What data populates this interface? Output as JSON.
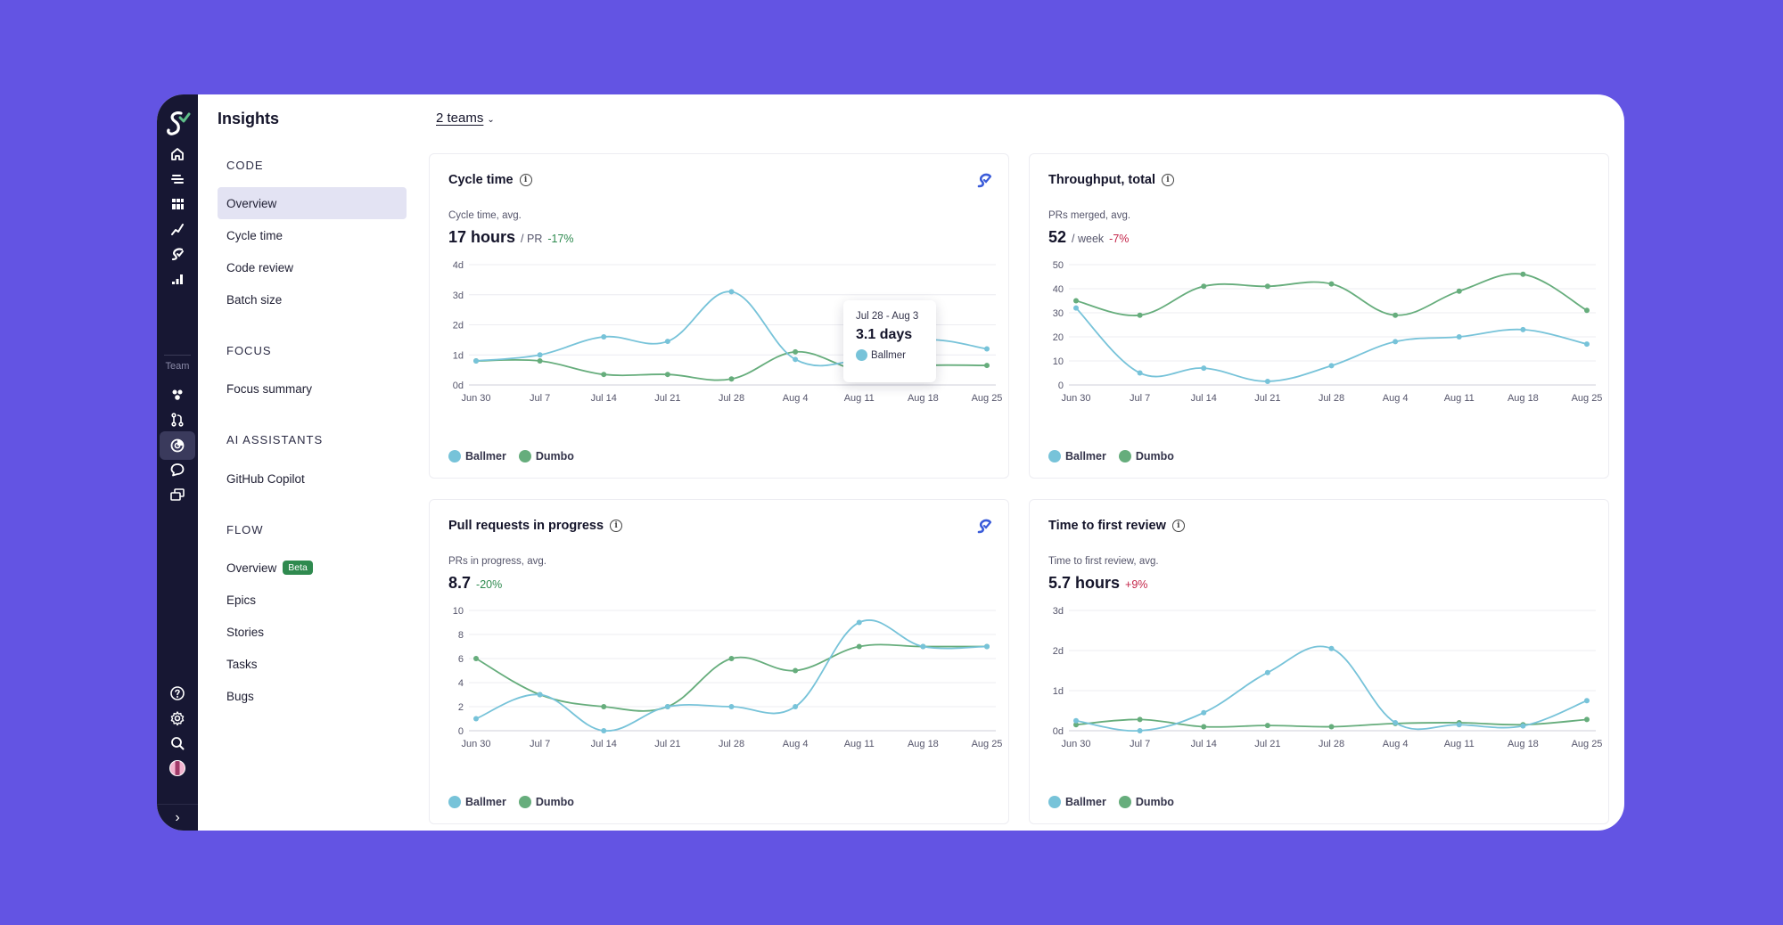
{
  "app": {
    "title": "Insights"
  },
  "teams_selector": "2 teams",
  "rail": {
    "team_label": "Team",
    "icons": [
      "home-icon",
      "list-icon",
      "grid-icon",
      "trend-icon",
      "swarmia-icon",
      "bars-icon",
      "people-icon",
      "pull-request-icon",
      "insights-icon",
      "chat-icon",
      "stack-icon"
    ],
    "footer_icons": [
      "help-icon",
      "settings-icon",
      "search-icon",
      "avatar",
      "expand-icon"
    ]
  },
  "nav": {
    "sections": [
      {
        "label": "CODE",
        "items": [
          {
            "label": "Overview",
            "active": true
          },
          {
            "label": "Cycle time"
          },
          {
            "label": "Code review"
          },
          {
            "label": "Batch size"
          }
        ]
      },
      {
        "label": "FOCUS",
        "items": [
          {
            "label": "Focus summary"
          }
        ]
      },
      {
        "label": "AI ASSISTANTS",
        "items": [
          {
            "label": "GitHub Copilot"
          }
        ]
      },
      {
        "label": "FLOW",
        "items": [
          {
            "label": "Overview",
            "badge": "Beta"
          },
          {
            "label": "Epics"
          },
          {
            "label": "Stories"
          },
          {
            "label": "Tasks"
          },
          {
            "label": "Bugs"
          }
        ]
      }
    ]
  },
  "colors": {
    "ballmer": "#77c3d9",
    "dumbo": "#66ad7c",
    "accent": "#6354e3"
  },
  "legend": [
    "Ballmer",
    "Dumbo"
  ],
  "cards": {
    "cycle_time": {
      "title": "Cycle time",
      "sublabel": "Cycle time, avg.",
      "value": "17 hours",
      "unit": "/ PR",
      "change": "-17%",
      "tooltip": {
        "date": "Jul 28 - Aug 3",
        "value": "3.1 days",
        "series": "Ballmer"
      }
    },
    "throughput": {
      "title": "Throughput, total",
      "sublabel": "PRs merged, avg.",
      "value": "52",
      "unit": "/ week",
      "change": "-7%"
    },
    "prs_in_progress": {
      "title": "Pull requests in progress",
      "sublabel": "PRs in progress, avg.",
      "value": "8.7",
      "change": "-20%"
    },
    "time_to_first_review": {
      "title": "Time to first review",
      "sublabel": "Time to first review, avg.",
      "value": "5.7 hours",
      "change": "+9%"
    }
  },
  "chart_data": [
    {
      "type": "line",
      "title": "Cycle time",
      "categories": [
        "Jun 30",
        "Jul 7",
        "Jul 14",
        "Jul 21",
        "Jul 28",
        "Aug 4",
        "Aug 11",
        "Aug 18",
        "Aug 25"
      ],
      "yticks": [
        "0d",
        "1d",
        "2d",
        "3d",
        "4d"
      ],
      "ylim": [
        0,
        4
      ],
      "series": [
        {
          "name": "Ballmer",
          "values": [
            0.8,
            1.0,
            1.6,
            1.45,
            3.1,
            0.85,
            0.85,
            1.5,
            1.2
          ]
        },
        {
          "name": "Dumbo",
          "values": [
            0.8,
            0.8,
            0.35,
            0.35,
            0.2,
            1.1,
            0.5,
            0.65,
            0.65
          ]
        }
      ]
    },
    {
      "type": "line",
      "title": "Throughput, total",
      "categories": [
        "Jun 30",
        "Jul 7",
        "Jul 14",
        "Jul 21",
        "Jul 28",
        "Aug 4",
        "Aug 11",
        "Aug 18",
        "Aug 25"
      ],
      "yticks": [
        "0",
        "10",
        "20",
        "30",
        "40",
        "50"
      ],
      "ylim": [
        0,
        50
      ],
      "series": [
        {
          "name": "Ballmer",
          "values": [
            32,
            5,
            7,
            1.5,
            8,
            18,
            20,
            23,
            17
          ]
        },
        {
          "name": "Dumbo",
          "values": [
            35,
            29,
            41,
            41,
            42,
            29,
            39,
            46,
            31
          ]
        }
      ]
    },
    {
      "type": "line",
      "title": "Pull requests in progress",
      "categories": [
        "Jun 30",
        "Jul 7",
        "Jul 14",
        "Jul 21",
        "Jul 28",
        "Aug 4",
        "Aug 11",
        "Aug 18",
        "Aug 25"
      ],
      "yticks": [
        "0",
        "2",
        "4",
        "6",
        "8",
        "10"
      ],
      "ylim": [
        0,
        10
      ],
      "series": [
        {
          "name": "Ballmer",
          "values": [
            1,
            3,
            0,
            2,
            2,
            2,
            9,
            7,
            7
          ]
        },
        {
          "name": "Dumbo",
          "values": [
            6,
            3,
            2,
            2,
            6,
            5,
            7,
            7,
            7
          ]
        }
      ]
    },
    {
      "type": "line",
      "title": "Time to first review",
      "categories": [
        "Jun 30",
        "Jul 7",
        "Jul 14",
        "Jul 21",
        "Jul 28",
        "Aug 4",
        "Aug 11",
        "Aug 18",
        "Aug 25"
      ],
      "yticks": [
        "0d",
        "1d",
        "2d",
        "3d"
      ],
      "ylim": [
        0,
        3
      ],
      "series": [
        {
          "name": "Ballmer",
          "values": [
            0.25,
            0.0,
            0.45,
            1.45,
            2.05,
            0.2,
            0.15,
            0.12,
            0.75
          ]
        },
        {
          "name": "Dumbo",
          "values": [
            0.15,
            0.28,
            0.1,
            0.13,
            0.1,
            0.18,
            0.2,
            0.15,
            0.28
          ]
        }
      ]
    }
  ]
}
